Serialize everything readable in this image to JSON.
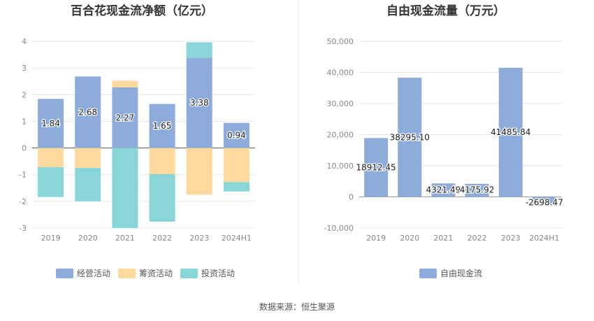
{
  "colors": {
    "operating": "#8eacdb",
    "financing": "#fed99e",
    "investing": "#88d6d8",
    "fcf": "#8eacdb"
  },
  "footer_text": "数据来源：恒生聚源",
  "chart_data": [
    {
      "type": "bar",
      "stacked": true,
      "title": "百合花现金流净额（亿元）",
      "categories": [
        "2019",
        "2020",
        "2021",
        "2022",
        "2023",
        "2024H1"
      ],
      "series": [
        {
          "name": "经营活动",
          "values": [
            1.84,
            2.68,
            2.27,
            1.65,
            3.38,
            0.94
          ],
          "show_labels": true
        },
        {
          "name": "筹资活动",
          "values": [
            -0.72,
            -0.75,
            0.25,
            -0.98,
            -1.75,
            -1.28
          ],
          "show_labels": false
        },
        {
          "name": "投资活动",
          "values": [
            -1.12,
            -1.25,
            -3.0,
            -1.78,
            0.58,
            -0.35
          ],
          "show_labels": false
        }
      ],
      "y_ticks": [
        "4",
        "3",
        "2",
        "1",
        "0",
        "-1",
        "-2",
        "-3"
      ],
      "ylim": [
        -3,
        4
      ],
      "legend": [
        "经营活动",
        "筹资活动",
        "投资活动"
      ],
      "legend_position": "bottom"
    },
    {
      "type": "bar",
      "title": "自由现金流量（万元）",
      "categories": [
        "2019",
        "2020",
        "2021",
        "2022",
        "2023",
        "2024H1"
      ],
      "series": [
        {
          "name": "自由现金流",
          "values": [
            18912.45,
            38295.1,
            4321.49,
            4175.92,
            41485.84,
            -2698.47
          ],
          "labels": [
            "18912.45",
            "38295.10",
            "4321.49",
            "4175.92",
            "41485.84",
            "-2698.47"
          ]
        }
      ],
      "y_ticks": [
        "50,000",
        "40,000",
        "30,000",
        "20,000",
        "10,000",
        "0",
        "-10,000"
      ],
      "ylim": [
        -10000,
        50000
      ],
      "legend": [
        "自由现金流"
      ],
      "legend_position": "bottom"
    }
  ]
}
